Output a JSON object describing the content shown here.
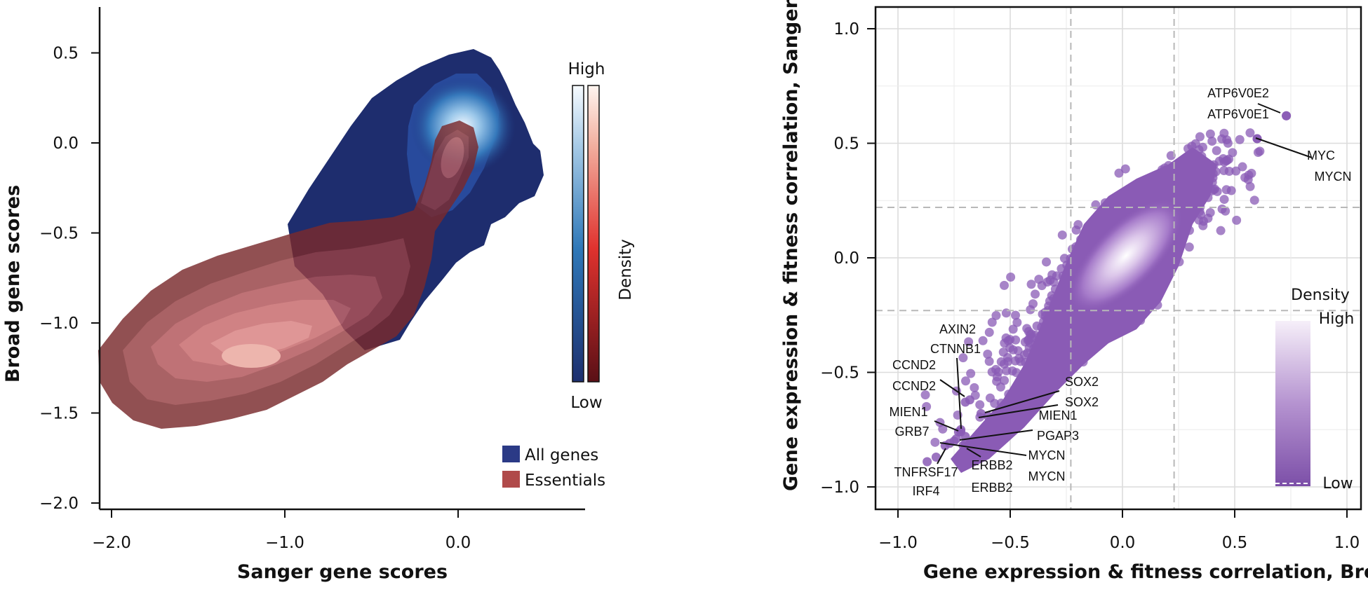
{
  "chart_data": [
    {
      "type": "contour-density",
      "xlabel": "Sanger gene scores",
      "ylabel": "Broad gene scores",
      "xlim": [
        -2.05,
        0.7
      ],
      "ylim": [
        -2.05,
        0.75
      ],
      "x_ticks": [
        "−2.0",
        "−1.0",
        "0.0"
      ],
      "y_ticks": [
        "0.5",
        "0.0",
        "−0.5",
        "−1.0",
        "−1.5",
        "−2.0"
      ],
      "x_tick_values": [
        -2.0,
        -1.0,
        0.0
      ],
      "y_tick_values": [
        0.5,
        0.0,
        -0.5,
        -1.0,
        -1.5,
        -2.0
      ],
      "series": [
        {
          "name": "All genes",
          "color": "#2b3a86",
          "density_peak": [
            0.05,
            0.05
          ],
          "spread": [
            0.22,
            0.18
          ]
        },
        {
          "name": "Essentials",
          "color": "#b04a4a",
          "density_peak": [
            -1.15,
            -1.18
          ],
          "spread": [
            0.45,
            0.22
          ]
        }
      ],
      "colorbar": {
        "title": "Density",
        "high_label": "High",
        "low_label": "Low"
      },
      "legend_position": "bottom-right"
    },
    {
      "type": "scatter",
      "xlabel": "Gene expression & fitness correlation, Broad",
      "ylabel": "Gene expression & fitness correlation, Sanger",
      "xlim": [
        -1.1,
        1.1
      ],
      "ylim": [
        -1.1,
        1.1
      ],
      "x_ticks": [
        "−1.0",
        "−0.5",
        "0.0",
        "0.5",
        "1.0"
      ],
      "y_ticks": [
        "1.0",
        "0.5",
        "0.0",
        "−0.5",
        "−1.0"
      ],
      "x_tick_values": [
        -1.0,
        -0.5,
        0.0,
        0.5,
        1.0
      ],
      "y_tick_values": [
        1.0,
        0.5,
        0.0,
        -0.5,
        -1.0
      ],
      "threshold_lines": {
        "x": [
          -0.23,
          0.23
        ],
        "y": [
          -0.23,
          0.22
        ]
      },
      "point_color": "#8a5bb5",
      "grid": true,
      "colorbar": {
        "title": "Density",
        "high_label": "High",
        "low_label": "Low"
      },
      "labeled_points": [
        {
          "label": "ATP6V0E2",
          "x": 0.73,
          "y": 0.62
        },
        {
          "label": "ATP6V0E1",
          "x": 0.73,
          "y": 0.62
        },
        {
          "label": "MYC",
          "x": 0.6,
          "y": 0.52
        },
        {
          "label": "MYCN",
          "x": 0.6,
          "y": 0.52
        },
        {
          "label": "AXIN2",
          "x": -0.68,
          "y": -0.62
        },
        {
          "label": "CTNNB1",
          "x": -0.72,
          "y": -0.75
        },
        {
          "label": "CCND2",
          "x": -0.7,
          "y": -0.63
        },
        {
          "label": "CCND2",
          "x": -0.73,
          "y": -0.76
        },
        {
          "label": "SOX2",
          "x": -0.63,
          "y": -0.68
        },
        {
          "label": "SOX2",
          "x": -0.6,
          "y": -0.69
        },
        {
          "label": "MIEN1",
          "x": -0.72,
          "y": -0.76
        },
        {
          "label": "MIEN1",
          "x": -0.7,
          "y": -0.78
        },
        {
          "label": "GRB7",
          "x": -0.74,
          "y": -0.79
        },
        {
          "label": "PGAP3",
          "x": -0.75,
          "y": -0.8
        },
        {
          "label": "MYCN",
          "x": -0.79,
          "y": -0.82
        },
        {
          "label": "MYCN",
          "x": -0.77,
          "y": -0.81
        },
        {
          "label": "ERBB2",
          "x": -0.7,
          "y": -0.81
        },
        {
          "label": "ERBB2",
          "x": -0.71,
          "y": -0.82
        },
        {
          "label": "TNFRSF17",
          "x": -0.87,
          "y": -0.89
        },
        {
          "label": "IRF4",
          "x": -0.83,
          "y": -0.87
        }
      ]
    }
  ]
}
